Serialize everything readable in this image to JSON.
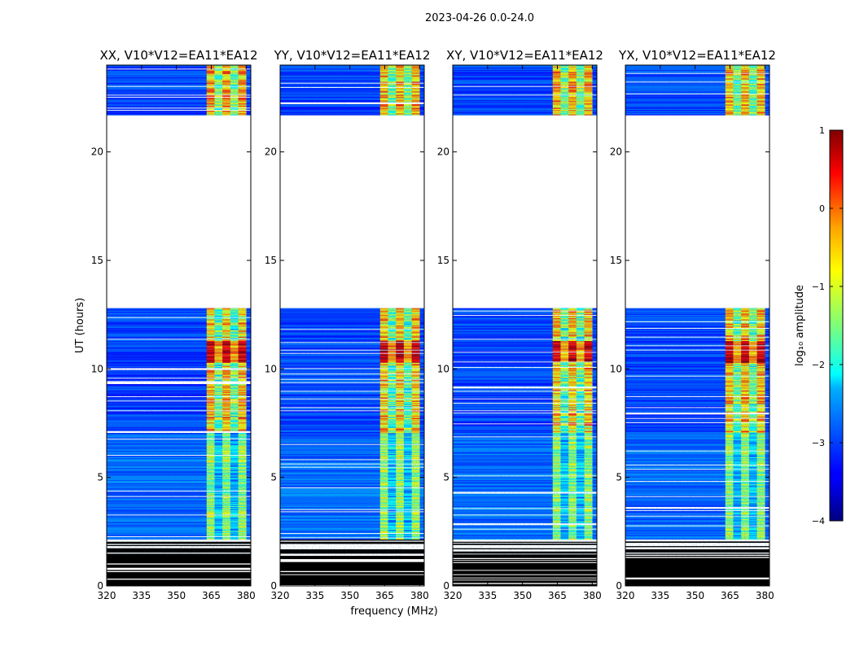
{
  "figure_title": "2023-04-26 0.0-24.0",
  "chart_data": {
    "type": "heatmap",
    "title": "2023-04-26 0.0-24.0",
    "xlabel": "frequency (MHz)",
    "ylabel": "UT (hours)",
    "xlim": [
      320,
      382
    ],
    "ylim": [
      0,
      24
    ],
    "xticks": [
      320,
      335,
      350,
      365,
      380
    ],
    "yticks": [
      0,
      5,
      10,
      15,
      20
    ],
    "panels": [
      {
        "title": "XX, V10*V12=EA11*EA12"
      },
      {
        "title": "YY, V10*V12=EA11*EA12"
      },
      {
        "title": "XY, V10*V12=EA11*EA12"
      },
      {
        "title": "YX, V10*V12=EA11*EA12"
      }
    ],
    "data_gap_hours": [
      12.8,
      21.7
    ],
    "flagged_black_hours": [
      0.0,
      1.4
    ],
    "rfi_band_mhz": [
      363,
      382
    ],
    "strongest_rfi_hours": [
      10.3,
      11.3
    ],
    "colorbar": {
      "label": "log10 amplitude",
      "label_text": "log₁₀ amplitude",
      "min": -4,
      "max": 1,
      "ticks": [
        1,
        0,
        -1,
        -2,
        -3,
        -4
      ],
      "tick_labels": [
        "1",
        "0",
        "−1",
        "−2",
        "−3",
        "−4"
      ],
      "colormap": "jet"
    }
  }
}
